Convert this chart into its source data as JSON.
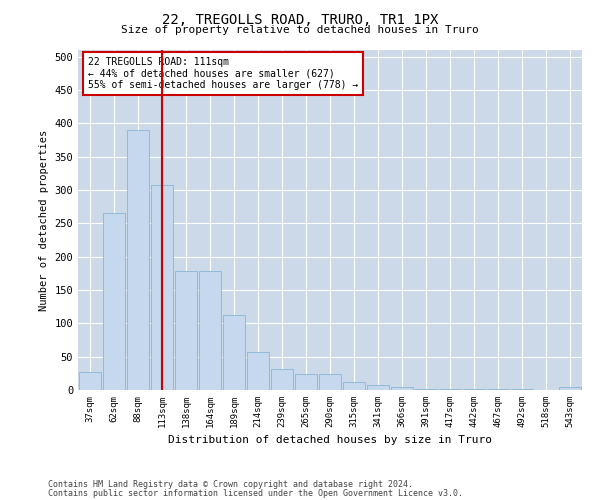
{
  "title1": "22, TREGOLLS ROAD, TRURO, TR1 1PX",
  "title2": "Size of property relative to detached houses in Truro",
  "xlabel": "Distribution of detached houses by size in Truro",
  "ylabel": "Number of detached properties",
  "bar_labels": [
    "37sqm",
    "62sqm",
    "88sqm",
    "113sqm",
    "138sqm",
    "164sqm",
    "189sqm",
    "214sqm",
    "239sqm",
    "265sqm",
    "290sqm",
    "315sqm",
    "341sqm",
    "366sqm",
    "391sqm",
    "417sqm",
    "442sqm",
    "467sqm",
    "492sqm",
    "518sqm",
    "543sqm"
  ],
  "bar_values": [
    27,
    265,
    390,
    307,
    178,
    178,
    113,
    57,
    32,
    24,
    24,
    12,
    7,
    5,
    1,
    1,
    1,
    1,
    1,
    0,
    5
  ],
  "bar_color": "#c5d8ed",
  "bar_edge_color": "#7bafd4",
  "property_index": 3,
  "vline_color": "#cc0000",
  "annotation_text": "22 TREGOLLS ROAD: 111sqm\n← 44% of detached houses are smaller (627)\n55% of semi-detached houses are larger (778) →",
  "annotation_box_color": "#ffffff",
  "annotation_box_edge": "#cc0000",
  "ylim": [
    0,
    510
  ],
  "yticks": [
    0,
    50,
    100,
    150,
    200,
    250,
    300,
    350,
    400,
    450,
    500
  ],
  "background_color": "#ffffff",
  "grid_color": "#ccd9e8",
  "footer1": "Contains HM Land Registry data © Crown copyright and database right 2024.",
  "footer2": "Contains public sector information licensed under the Open Government Licence v3.0."
}
